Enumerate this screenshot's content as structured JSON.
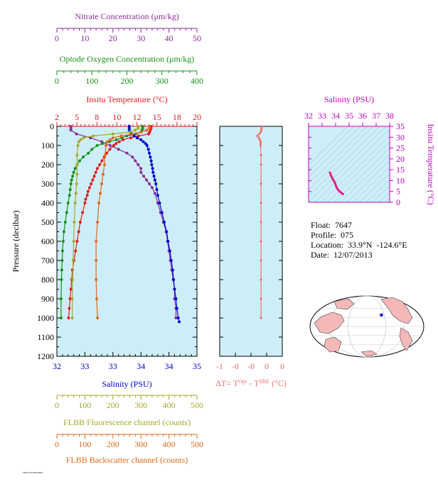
{
  "colors": {
    "nitrate": "#8b2d9b",
    "oxygen": "#179017",
    "temperature": "#e01b1b",
    "salinity": "#0000d0",
    "fluorescence": "#a6a82c",
    "backscatter": "#e06a1a",
    "delta_t": "#f07070",
    "ts": "#e0208a",
    "ts_axis": "#c000c0",
    "panel_bg": "#cdeef8",
    "ocean": "#ffffff",
    "land": "#f4b8b8"
  },
  "info": {
    "float": "Float:  7647",
    "profile": "Profile:  075",
    "location": "Location:  33.9°N  -124.6°E",
    "date": "Date:  12/07/2013"
  },
  "footer_text": "7647 075 12/07/2013",
  "chart_data": [
    {
      "type": "line",
      "panel": "main",
      "ylabel": "Pressure (decibar)",
      "ylim": [
        0,
        1200
      ],
      "yticks": [
        "0",
        "100",
        "200",
        "300",
        "400",
        "500",
        "600",
        "700",
        "800",
        "900",
        "1000",
        "1100",
        "1200"
      ],
      "axes": {
        "nitrate": {
          "title": "Nitrate Concentration (μm/kg)",
          "range": [
            0,
            50
          ],
          "ticks": [
            "0",
            "10",
            "20",
            "30",
            "40",
            "50"
          ]
        },
        "oxygen": {
          "title": "Optode Oxygen Concentration (μm/kg)",
          "range": [
            0,
            400
          ],
          "ticks": [
            "0",
            "100",
            "200",
            "300",
            "400"
          ]
        },
        "temperature": {
          "title": "Insitu Temperature (°C)",
          "range": [
            2,
            20
          ],
          "ticks": [
            "2",
            "5",
            "8",
            "10",
            "12",
            "15",
            "18",
            "20"
          ]
        },
        "salinity": {
          "title": "Salinity (PSU)",
          "range": [
            32,
            35
          ],
          "ticks": [
            "32",
            "33",
            "33",
            "34",
            "34",
            "35"
          ]
        },
        "fluorescence": {
          "title": "FLBB Fluorescence channel (counts)",
          "range": [
            0,
            500
          ],
          "ticks": [
            "0",
            "100",
            "200",
            "300",
            "400",
            "500"
          ]
        },
        "backscatter": {
          "title": "FLBB Backscatter channel (counts)",
          "range": [
            0,
            500
          ],
          "ticks": [
            "0",
            "100",
            "200",
            "300",
            "400",
            "500"
          ]
        }
      },
      "series": [
        {
          "name": "Nitrate Concentration (μm/kg)",
          "axis": "nitrate",
          "points": [
            [
              0,
              5
            ],
            [
              10,
              5
            ],
            [
              20,
              5
            ],
            [
              40,
              7
            ],
            [
              60,
              12
            ],
            [
              80,
              16
            ],
            [
              100,
              19
            ],
            [
              120,
              22
            ],
            [
              140,
              25
            ],
            [
              160,
              27
            ],
            [
              180,
              28
            ],
            [
              200,
              29
            ],
            [
              220,
              30
            ],
            [
              240,
              30
            ],
            [
              260,
              31
            ],
            [
              280,
              32
            ],
            [
              300,
              33
            ],
            [
              320,
              34
            ],
            [
              350,
              35
            ],
            [
              400,
              36
            ],
            [
              450,
              37
            ],
            [
              500,
              38
            ],
            [
              550,
              39
            ],
            [
              600,
              39.5
            ],
            [
              650,
              40
            ],
            [
              700,
              40.5
            ],
            [
              750,
              41
            ],
            [
              800,
              41.5
            ],
            [
              850,
              42
            ],
            [
              900,
              42
            ],
            [
              950,
              42.5
            ],
            [
              1000,
              42.5
            ]
          ]
        },
        {
          "name": "Optode Oxygen Concentration (μm/kg)",
          "axis": "oxygen",
          "points": [
            [
              0,
              245
            ],
            [
              10,
              245
            ],
            [
              20,
              243
            ],
            [
              30,
              240
            ],
            [
              40,
              225
            ],
            [
              50,
              200
            ],
            [
              60,
              185
            ],
            [
              70,
              170
            ],
            [
              80,
              150
            ],
            [
              90,
              130
            ],
            [
              100,
              115
            ],
            [
              120,
              100
            ],
            [
              140,
              90
            ],
            [
              160,
              75
            ],
            [
              180,
              65
            ],
            [
              200,
              58
            ],
            [
              220,
              52
            ],
            [
              240,
              48
            ],
            [
              260,
              45
            ],
            [
              280,
              42
            ],
            [
              300,
              40
            ],
            [
              330,
              38
            ],
            [
              360,
              36
            ],
            [
              400,
              32
            ],
            [
              450,
              28
            ],
            [
              500,
              24
            ],
            [
              550,
              20
            ],
            [
              600,
              18
            ],
            [
              650,
              16
            ],
            [
              700,
              15
            ],
            [
              750,
              14
            ],
            [
              800,
              13
            ],
            [
              900,
              12
            ],
            [
              1000,
              12
            ]
          ]
        },
        {
          "name": "Insitu Temperature (°C)",
          "axis": "temperature",
          "points": [
            [
              0,
              14.1
            ],
            [
              10,
              14.1
            ],
            [
              20,
              14.0
            ],
            [
              30,
              13.9
            ],
            [
              40,
              13.8
            ],
            [
              50,
              12.5
            ],
            [
              60,
              11.5
            ],
            [
              70,
              10.5
            ],
            [
              80,
              10.0
            ],
            [
              90,
              9.6
            ],
            [
              100,
              9.3
            ],
            [
              120,
              8.8
            ],
            [
              140,
              8.4
            ],
            [
              160,
              8.1
            ],
            [
              180,
              7.8
            ],
            [
              200,
              7.5
            ],
            [
              220,
              7.2
            ],
            [
              240,
              7.0
            ],
            [
              260,
              6.8
            ],
            [
              280,
              6.6
            ],
            [
              300,
              6.4
            ],
            [
              320,
              6.2
            ],
            [
              340,
              6.0
            ],
            [
              360,
              5.9
            ],
            [
              380,
              5.7
            ],
            [
              400,
              5.6
            ],
            [
              450,
              5.3
            ],
            [
              500,
              5.0
            ],
            [
              550,
              4.8
            ],
            [
              600,
              4.6
            ],
            [
              650,
              4.4
            ],
            [
              700,
              4.2
            ],
            [
              750,
              4.0
            ],
            [
              800,
              3.9
            ],
            [
              850,
              3.8
            ],
            [
              900,
              3.7
            ],
            [
              950,
              3.6
            ],
            [
              1000,
              3.5
            ]
          ]
        },
        {
          "name": "Salinity (PSU)",
          "axis": "salinity",
          "points": [
            [
              0,
              33.55
            ],
            [
              10,
              33.55
            ],
            [
              20,
              33.55
            ],
            [
              30,
              33.57
            ],
            [
              40,
              33.6
            ],
            [
              50,
              33.65
            ],
            [
              60,
              33.72
            ],
            [
              70,
              33.8
            ],
            [
              80,
              33.85
            ],
            [
              90,
              33.9
            ],
            [
              100,
              33.93
            ],
            [
              120,
              33.96
            ],
            [
              140,
              33.98
            ],
            [
              160,
              34.0
            ],
            [
              180,
              34.02
            ],
            [
              200,
              34.03
            ],
            [
              220,
              34.05
            ],
            [
              240,
              34.06
            ],
            [
              260,
              34.08
            ],
            [
              280,
              34.1
            ],
            [
              300,
              34.12
            ],
            [
              330,
              34.14
            ],
            [
              360,
              34.16
            ],
            [
              400,
              34.2
            ],
            [
              450,
              34.25
            ],
            [
              500,
              34.3
            ],
            [
              550,
              34.35
            ],
            [
              600,
              34.38
            ],
            [
              650,
              34.42
            ],
            [
              700,
              34.45
            ],
            [
              750,
              34.48
            ],
            [
              800,
              34.5
            ],
            [
              850,
              34.52
            ],
            [
              900,
              34.55
            ],
            [
              950,
              34.57
            ],
            [
              1000,
              34.6
            ],
            [
              1020,
              34.62
            ]
          ]
        },
        {
          "name": "FLBB Fluorescence channel (counts)",
          "axis": "fluorescence",
          "points": [
            [
              0,
              290
            ],
            [
              10,
              290
            ],
            [
              20,
              280
            ],
            [
              30,
              260
            ],
            [
              40,
              200
            ],
            [
              50,
              130
            ],
            [
              60,
              95
            ],
            [
              70,
              85
            ],
            [
              80,
              78
            ],
            [
              100,
              75
            ],
            [
              150,
              72
            ],
            [
              200,
              72
            ],
            [
              250,
              72
            ],
            [
              300,
              70
            ],
            [
              350,
              68
            ],
            [
              400,
              65
            ],
            [
              500,
              62
            ],
            [
              600,
              60
            ],
            [
              700,
              58
            ],
            [
              800,
              56
            ],
            [
              900,
              55
            ],
            [
              1000,
              55
            ]
          ]
        },
        {
          "name": "FLBB Backscatter channel (counts)",
          "axis": "backscatter",
          "points": [
            [
              0,
              330
            ],
            [
              10,
              330
            ],
            [
              20,
              320
            ],
            [
              30,
              300
            ],
            [
              40,
              270
            ],
            [
              50,
              230
            ],
            [
              60,
              200
            ],
            [
              70,
              190
            ],
            [
              80,
              180
            ],
            [
              100,
              175
            ],
            [
              150,
              172
            ],
            [
              200,
              170
            ],
            [
              250,
              165
            ],
            [
              300,
              160
            ],
            [
              350,
              155
            ],
            [
              400,
              150
            ],
            [
              500,
              145
            ],
            [
              600,
              140
            ],
            [
              700,
              140
            ],
            [
              800,
              140
            ],
            [
              900,
              142
            ],
            [
              1000,
              145
            ]
          ]
        }
      ]
    },
    {
      "type": "line",
      "panel": "delta_t",
      "xlabel": "ΔT= T^Opt - T^SBE (°C)",
      "xlabel_main": "ΔT= T",
      "xlabel_sup1": "Opt",
      "xlabel_mid": " - T",
      "xlabel_sup2": "SBE",
      "xlabel_end": " (°C)",
      "xlim": [
        -1,
        0.5
      ],
      "xticks": [
        "-1",
        "-0",
        "-0",
        "0",
        "0"
      ],
      "ylim": [
        0,
        1200
      ],
      "series": [
        {
          "name": "ΔT",
          "points": [
            [
              0,
              0
            ],
            [
              10,
              0
            ],
            [
              20,
              0
            ],
            [
              30,
              -0.02
            ],
            [
              40,
              -0.05
            ],
            [
              50,
              -0.1
            ],
            [
              60,
              -0.06
            ],
            [
              70,
              -0.04
            ],
            [
              80,
              -0.02
            ],
            [
              90,
              -0.02
            ],
            [
              100,
              -0.02
            ],
            [
              150,
              -0.01
            ],
            [
              200,
              -0.01
            ],
            [
              300,
              -0.01
            ],
            [
              400,
              -0.01
            ],
            [
              500,
              -0.01
            ],
            [
              600,
              -0.01
            ],
            [
              700,
              -0.01
            ],
            [
              800,
              -0.01
            ],
            [
              900,
              -0.01
            ],
            [
              1000,
              -0.01
            ]
          ]
        }
      ]
    },
    {
      "type": "line",
      "panel": "ts",
      "title": "Salinity (PSU)",
      "xlabel": "Salinity (PSU)",
      "ylabel": "Insitu Temperature (°C)",
      "xlim": [
        32,
        38
      ],
      "ylim": [
        0,
        35
      ],
      "xticks": [
        "32",
        "33",
        "34",
        "35",
        "36",
        "37",
        "38"
      ],
      "yticks": [
        "0",
        "5",
        "10",
        "15",
        "20",
        "25",
        "30",
        "35"
      ],
      "series": [
        {
          "name": "T-S",
          "points": [
            [
              33.55,
              14.1
            ],
            [
              33.57,
              13.8
            ],
            [
              33.65,
              12.5
            ],
            [
              33.8,
              10.5
            ],
            [
              33.93,
              9.3
            ],
            [
              34.0,
              8.1
            ],
            [
              34.05,
              7.2
            ],
            [
              34.12,
              6.4
            ],
            [
              34.2,
              5.6
            ],
            [
              34.3,
              5.0
            ],
            [
              34.45,
              4.2
            ],
            [
              34.6,
              3.5
            ]
          ]
        }
      ]
    },
    {
      "type": "map",
      "panel": "location",
      "marker": {
        "lat": 33.9,
        "lon": -124.6
      }
    }
  ]
}
